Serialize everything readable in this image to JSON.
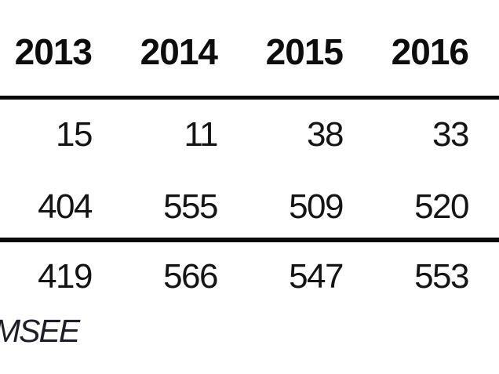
{
  "table": {
    "column_headers": [
      "2013",
      "2014",
      "2015",
      "2016"
    ],
    "body_rows": [
      [
        "15",
        "11",
        "38",
        "33"
      ],
      [
        "404",
        "555",
        "509",
        "520"
      ]
    ],
    "total_row": [
      "419",
      "566",
      "547",
      "553"
    ]
  },
  "footnote": {
    "visible_fragment": "MSEE"
  },
  "colors": {
    "background": "#ffffff",
    "header_text": "#0d0d0d",
    "body_text": "#141414",
    "rule": "#0a0a0a",
    "footnote_text": "#1e1e28"
  }
}
